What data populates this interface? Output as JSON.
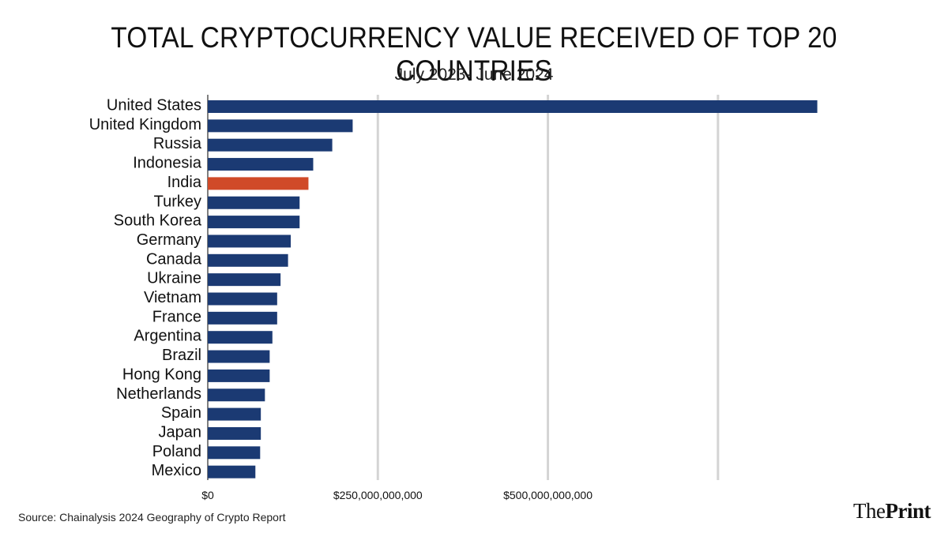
{
  "header": {
    "title": "TOTAL CRYPTOCURRENCY VALUE RECEIVED OF TOP 20 COUNTRIES",
    "subtitle": "July 2023- June 2024"
  },
  "footer": {
    "source": "Source: Chainalysis 2024 Geography of Crypto Report",
    "brand_part1": "The",
    "brand_part2": "Print"
  },
  "colors": {
    "bar": "#1b3a73",
    "highlight": "#d04a28",
    "grid": "#d4d4d4",
    "axis": "#555555"
  },
  "chart_data": {
    "type": "bar",
    "orientation": "horizontal",
    "title": "TOTAL CRYPTOCURRENCY VALUE RECEIVED OF TOP 20 COUNTRIES",
    "subtitle": "July 2023- June 2024",
    "xlabel": "",
    "ylabel": "",
    "xlim": [
      0,
      900000000000
    ],
    "grid": true,
    "highlight": "India",
    "x_ticks": [
      {
        "value": 0,
        "label": "$0"
      },
      {
        "value": 250000000000,
        "label": "$250,000,000,000"
      },
      {
        "value": 500000000000,
        "label": "$500,000,000,000"
      },
      {
        "value": 750000000000,
        "label": ""
      }
    ],
    "categories": [
      "United States",
      "United Kingdom",
      "Russia",
      "Indonesia",
      "India",
      "Turkey",
      "South Korea",
      "Germany",
      "Canada",
      "Ukraine",
      "Vietnam",
      "France",
      "Argentina",
      "Brazil",
      "Hong Kong",
      "Netherlands",
      "Spain",
      "Japan",
      "Poland",
      "Mexico"
    ],
    "values": [
      896000000000,
      213000000000,
      183000000000,
      155000000000,
      148000000000,
      135000000000,
      135000000000,
      122000000000,
      118000000000,
      107000000000,
      102000000000,
      102000000000,
      95000000000,
      91000000000,
      91000000000,
      84000000000,
      78000000000,
      78000000000,
      77000000000,
      70000000000
    ]
  }
}
